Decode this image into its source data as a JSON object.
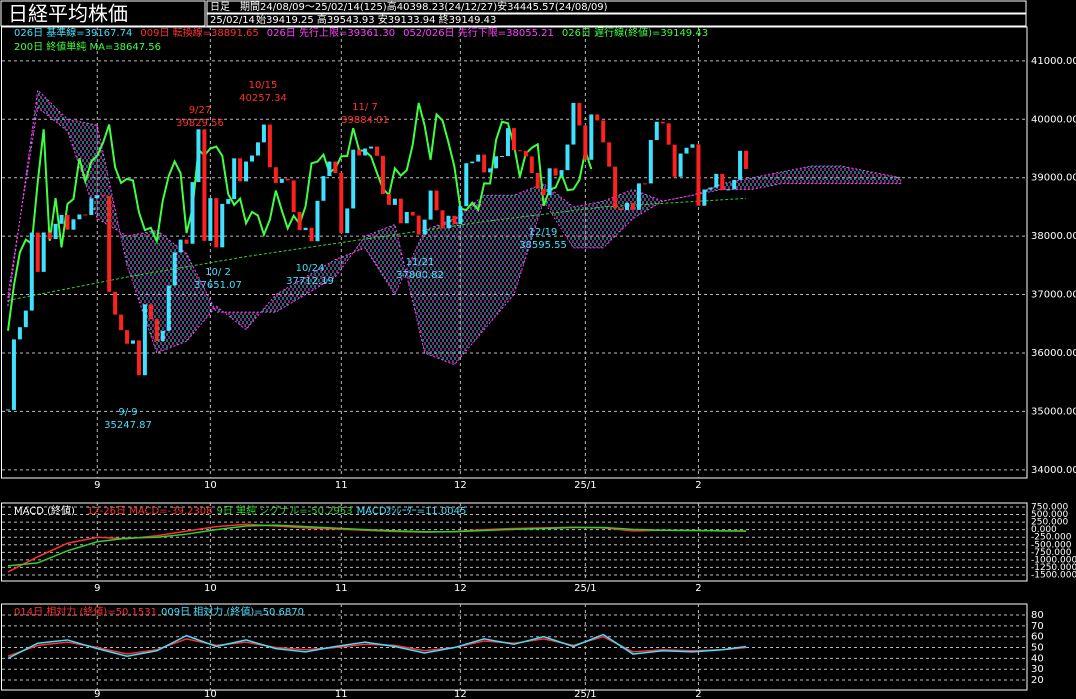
{
  "header": {
    "title": "日経平均株価",
    "period_label": "日足",
    "period": "期間24/08/09～25/02/14(125)高40398.23(24/12/27)安34445.57(24/08/09)",
    "date": "25/02/14",
    "ohlc": "始39419.25 高39543.93 安39133.94 終39149.43"
  },
  "chart_data": [
    {
      "type": "candlestick",
      "legend": [
        {
          "label": "026日 基準線=39167.74",
          "color": "#40e0ff"
        },
        {
          "label": "009日 転換線=38891.65",
          "color": "#ff3030"
        },
        {
          "label": "026日 先行上限=39361.30",
          "color": "#ff40ff"
        },
        {
          "label": "052/026日 先行下限=38055.21",
          "color": "#ff40ff"
        },
        {
          "label": "026日 遅行線(終値)=39149.43",
          "color": "#40ff40"
        },
        {
          "label": "200日 終値単純 MA=38647.56",
          "color": "#40ff40"
        }
      ],
      "up_color": "#40e0ff",
      "down_color": "#ff2020",
      "lag_color": "#40ff40",
      "ma_color": "#30d030",
      "close": [
        35025,
        36233,
        36442,
        36726,
        38062,
        37388,
        38063,
        37951,
        38211,
        38364,
        38110,
        38288,
        38371,
        38362,
        38647,
        38700,
        38686,
        37047,
        36657,
        36391,
        36159,
        36215,
        35619,
        36833,
        36581,
        36203,
        36380,
        37155,
        37723,
        37940,
        37870,
        38925,
        39829,
        37919,
        38651,
        37808,
        38552,
        38635,
        39332,
        38937,
        39277,
        39380,
        39605,
        39910,
        39180,
        38911,
        38981,
        38954,
        38411,
        38104,
        38143,
        37913,
        38605,
        39027,
        39277,
        39081,
        38053,
        38474,
        39480,
        39381,
        39500,
        39533,
        39376,
        38721,
        38535,
        38642,
        38220,
        38414,
        38352,
        38026,
        38283,
        38780,
        38442,
        38134,
        38349,
        38208,
        38513,
        39248,
        39276,
        39395,
        39091,
        39160,
        39367,
        39372,
        39849,
        39470,
        39457,
        39364,
        39081,
        38813,
        38701,
        39161,
        39036,
        39130,
        39568,
        40281,
        39894,
        39307,
        40083,
        39981,
        39605,
        39190,
        38474,
        38445,
        38572,
        38451,
        38903,
        38902,
        39646,
        39958,
        39931,
        39565,
        39016,
        39414,
        39513,
        39572,
        38520,
        38798,
        38831,
        39066,
        38787,
        38801,
        38963,
        39461,
        39149
      ],
      "cloud": {
        "x": [
          0,
          5,
          10,
          15,
          20,
          25,
          30,
          35,
          40,
          45,
          50,
          55,
          60,
          65,
          70,
          75,
          80,
          85,
          90,
          95,
          100,
          105,
          110,
          115,
          120,
          125,
          130,
          135,
          140,
          150
        ],
        "span_a": [
          36800,
          40500,
          40000,
          39900,
          37500,
          36000,
          36200,
          36800,
          36400,
          37000,
          37300,
          37600,
          37800,
          37000,
          38100,
          38300,
          38700,
          38700,
          38900,
          38500,
          38600,
          38800,
          38600,
          38700,
          38900,
          39000,
          39100,
          39200,
          39200,
          39000
        ],
        "span_b": [
          37000,
          40200,
          39800,
          38300,
          38000,
          38100,
          37700,
          36700,
          36700,
          36700,
          37000,
          37300,
          38000,
          38200,
          36000,
          35800,
          36400,
          37000,
          38600,
          37800,
          37800,
          38300,
          38600,
          38700,
          38800,
          38800,
          38900,
          38900,
          38900,
          38900
        ]
      },
      "ma200": {
        "x": [
          0,
          20,
          40,
          60,
          80,
          100,
          124
        ],
        "values": [
          36900,
          37300,
          37650,
          37950,
          38250,
          38500,
          38647
        ]
      },
      "annotations": [
        {
          "date": "10/15",
          "price": "40257.34",
          "color": "#ff3030"
        },
        {
          "date": "9/27",
          "price": "39829.56",
          "color": "#ff3030"
        },
        {
          "date": "11/ 7",
          "price": "39884.01",
          "color": "#ff3030"
        },
        {
          "date": "10/ 2",
          "price": "37651.07",
          "color": "#40e0ff"
        },
        {
          "date": "10/24",
          "price": "37712.19",
          "color": "#40e0ff"
        },
        {
          "date": "9/ 9",
          "price": "35247.87",
          "color": "#40e0ff"
        },
        {
          "date": "11/21",
          "price": "37800.82",
          "color": "#40e0ff"
        },
        {
          "date": "12/19",
          "price": "38595.55",
          "color": "#40e0ff"
        }
      ],
      "xlim": [
        -1.34,
        171.2
      ],
      "xticks": [
        {
          "value": 15,
          "label": "9"
        },
        {
          "value": 34,
          "label": "10"
        },
        {
          "value": 56,
          "label": "11"
        },
        {
          "value": 76,
          "label": "12"
        },
        {
          "value": 97,
          "label": "25/1"
        },
        {
          "value": 116,
          "label": "2"
        }
      ],
      "ylim": [
        33860,
        41580
      ],
      "yticks": [
        {
          "value": 41000,
          "label": "41000.00"
        },
        {
          "value": 40000,
          "label": "40000.00"
        },
        {
          "value": 39000,
          "label": "39000.00"
        },
        {
          "value": 38000,
          "label": "38000.00"
        },
        {
          "value": 37000,
          "label": "37000.00"
        },
        {
          "value": 36000,
          "label": "36000.00"
        },
        {
          "value": 35000,
          "label": "35000.00"
        },
        {
          "value": 34000,
          "label": "34000.00"
        }
      ],
      "grid": true
    },
    {
      "type": "line",
      "title": "MACD (終値)",
      "series": [
        {
          "name": "12-26日 MACD=-39.2308",
          "color": "#ff3030",
          "x": [
            0,
            5,
            10,
            15,
            20,
            25,
            30,
            35,
            40,
            45,
            50,
            55,
            60,
            65,
            70,
            75,
            80,
            85,
            90,
            95,
            100,
            105,
            110,
            115,
            120,
            124
          ],
          "values": [
            -1400,
            -900,
            -450,
            -250,
            -300,
            -200,
            -50,
            100,
            180,
            120,
            60,
            20,
            -20,
            -60,
            -80,
            -60,
            0,
            40,
            60,
            80,
            60,
            -40,
            -20,
            -30,
            -40,
            -39
          ]
        },
        {
          "name": "9日 単純 シグナル=-50.2953",
          "color": "#30d030",
          "x": [
            0,
            5,
            10,
            15,
            20,
            25,
            30,
            35,
            40,
            45,
            50,
            55,
            60,
            65,
            70,
            75,
            80,
            85,
            90,
            95,
            100,
            105,
            110,
            115,
            120,
            124
          ],
          "values": [
            -1200,
            -1100,
            -700,
            -400,
            -280,
            -250,
            -150,
            0,
            120,
            150,
            100,
            50,
            0,
            -40,
            -70,
            -70,
            -30,
            10,
            40,
            70,
            70,
            10,
            -20,
            -30,
            -40,
            -50
          ]
        }
      ],
      "extra_legend": [
        {
          "label": "MACDｵｼﾚｰﾀｰ=11.0045",
          "color": "#40e0ff"
        }
      ],
      "xlim": [
        -1.34,
        171.2
      ],
      "xticks": [
        {
          "value": 15,
          "label": "9"
        },
        {
          "value": 34,
          "label": "10"
        },
        {
          "value": 56,
          "label": "11"
        },
        {
          "value": 76,
          "label": "12"
        },
        {
          "value": 97,
          "label": "25/1"
        },
        {
          "value": 116,
          "label": "2"
        }
      ],
      "ylim": [
        -1699,
        882
      ],
      "yticks": [
        {
          "value": 750,
          "label": "750.000"
        },
        {
          "value": 500,
          "label": "500.000"
        },
        {
          "value": 250,
          "label": "250.000"
        },
        {
          "value": 0,
          "label": "0.000"
        },
        {
          "value": -250,
          "label": "-250.000"
        },
        {
          "value": -500,
          "label": "-500.000"
        },
        {
          "value": -750,
          "label": "-750.000"
        },
        {
          "value": -1000,
          "label": "-1000.000"
        },
        {
          "value": -1250,
          "label": "-1250.000"
        },
        {
          "value": -1500,
          "label": "-1500.000"
        }
      ],
      "grid": true
    },
    {
      "type": "line",
      "series": [
        {
          "name": "014日 相対力 (終値)=50.1531",
          "color": "#ff3030",
          "x": [
            0,
            5,
            10,
            15,
            20,
            25,
            30,
            35,
            40,
            45,
            50,
            55,
            60,
            65,
            70,
            75,
            80,
            85,
            90,
            95,
            100,
            105,
            110,
            115,
            120,
            124
          ],
          "values": [
            42,
            52,
            55,
            50,
            44,
            48,
            58,
            52,
            55,
            50,
            48,
            50,
            53,
            52,
            47,
            50,
            56,
            54,
            58,
            52,
            60,
            46,
            48,
            47,
            48,
            50
          ]
        },
        {
          "name": "009日 相対力 (終値)=50.6870",
          "color": "#40e0ff",
          "x": [
            0,
            5,
            10,
            15,
            20,
            25,
            30,
            35,
            40,
            45,
            50,
            55,
            60,
            65,
            70,
            75,
            80,
            85,
            90,
            95,
            100,
            105,
            110,
            115,
            120,
            124
          ],
          "values": [
            40,
            54,
            57,
            49,
            42,
            47,
            61,
            51,
            57,
            49,
            46,
            51,
            55,
            51,
            45,
            50,
            58,
            53,
            60,
            51,
            62,
            44,
            47,
            46,
            48,
            51
          ]
        }
      ],
      "xlim": [
        -1.34,
        171.2
      ],
      "xticks": [
        {
          "value": 15,
          "label": "9"
        },
        {
          "value": 34,
          "label": "10"
        },
        {
          "value": 56,
          "label": "11"
        },
        {
          "value": 76,
          "label": "12"
        },
        {
          "value": 97,
          "label": "25/1"
        },
        {
          "value": 116,
          "label": "2"
        }
      ],
      "ylim": [
        10.8,
        90.2
      ],
      "yticks": [
        80,
        70,
        60,
        50,
        40,
        30,
        20
      ],
      "grid": true
    }
  ]
}
